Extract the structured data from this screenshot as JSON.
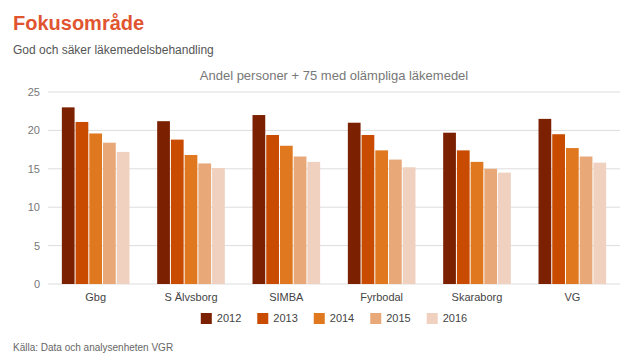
{
  "chart_data": {
    "type": "bar",
    "title": "Andel personer + 75 med olämpliga läkemedel",
    "subtitle": "God och säker läkemedelsbehandling",
    "annotations": [
      "Fokusområde",
      "Källa: Data och analysenheten VGR"
    ],
    "categories": [
      "Gbg",
      "S Älvsborg",
      "SIMBA",
      "Fyrbodal",
      "Skaraborg",
      "VG"
    ],
    "series": [
      {
        "name": "2012",
        "color": "#7B2000",
        "values": [
          23.0,
          21.2,
          22.0,
          21.0,
          19.7,
          21.5
        ]
      },
      {
        "name": "2013",
        "color": "#C84B00",
        "values": [
          21.1,
          18.8,
          19.4,
          19.4,
          17.4,
          19.5
        ]
      },
      {
        "name": "2014",
        "color": "#E07820",
        "values": [
          19.6,
          16.8,
          18.0,
          17.4,
          15.9,
          17.7
        ]
      },
      {
        "name": "2015",
        "color": "#E8A878",
        "values": [
          18.4,
          15.7,
          16.6,
          16.2,
          15.0,
          16.6
        ]
      },
      {
        "name": "2016",
        "color": "#F0D0BE",
        "values": [
          17.2,
          15.1,
          15.9,
          15.2,
          14.5,
          15.8
        ]
      }
    ],
    "ylim": [
      0,
      25
    ],
    "yticks": [
      0,
      5,
      10,
      15,
      20,
      25
    ],
    "grid": true,
    "legend": "bottom"
  }
}
